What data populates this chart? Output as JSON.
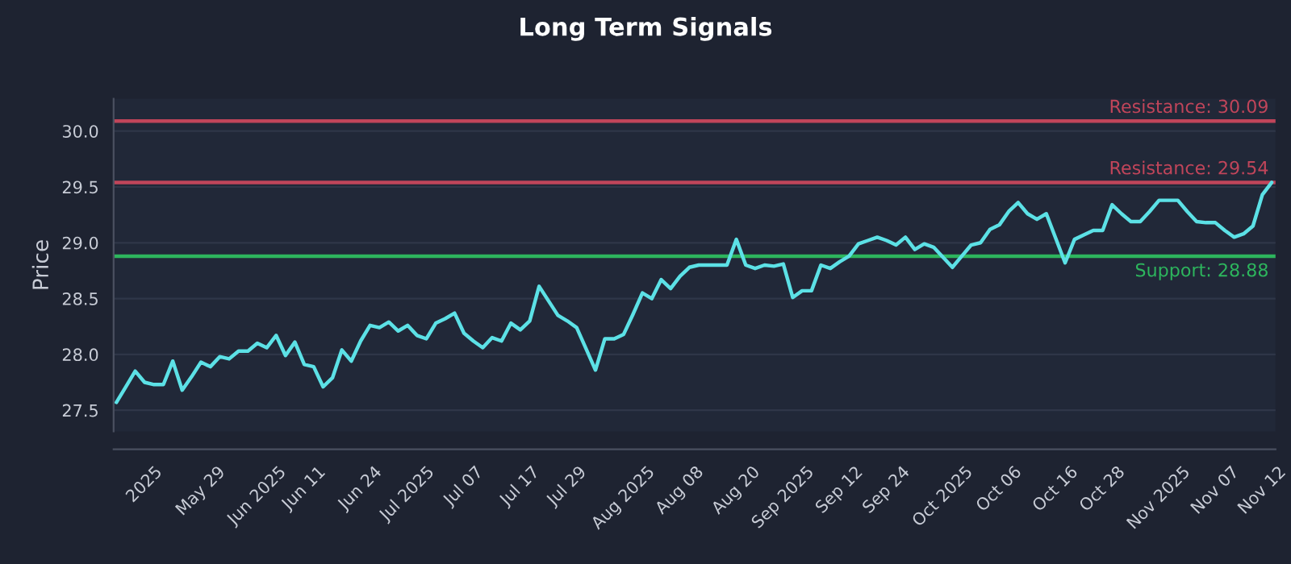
{
  "chart_data": {
    "type": "line",
    "title": "Long Term Signals",
    "ylabel": "Price",
    "categories": [
      null,
      null,
      null,
      "2025",
      null,
      null,
      null,
      null,
      null,
      "May 29",
      null,
      null,
      null,
      null,
      null,
      "Jun 2025",
      null,
      null,
      null,
      null,
      "Jun 11",
      null,
      null,
      null,
      null,
      null,
      "Jun 24",
      null,
      null,
      null,
      null,
      "Jul 2025",
      null,
      null,
      null,
      null,
      null,
      "Jul 07",
      null,
      null,
      null,
      null,
      null,
      "Jul 17",
      null,
      null,
      null,
      null,
      "Jul 29",
      null,
      null,
      null,
      null,
      null,
      "Aug 2025",
      null,
      null,
      null,
      null,
      null,
      "Aug 08",
      null,
      null,
      null,
      null,
      null,
      "Aug 20",
      null,
      null,
      null,
      null,
      "Sep 2025",
      null,
      null,
      null,
      null,
      null,
      "Sep 12",
      null,
      null,
      null,
      null,
      "Sep 24",
      null,
      null,
      null,
      null,
      null,
      "Oct 2025",
      null,
      null,
      null,
      null,
      null,
      "Oct 06",
      null,
      null,
      null,
      null,
      null,
      "Oct 16",
      null,
      null,
      null,
      null,
      "Oct 28",
      null,
      null,
      null,
      null,
      null,
      "Nov 2025",
      null,
      null,
      null,
      null,
      null,
      "Nov 07",
      null,
      null,
      null,
      null,
      "Nov 12",
      null
    ],
    "series": [
      {
        "color": "#5ce1e6",
        "values": [
          27.57,
          27.71,
          27.85,
          27.75,
          27.73,
          27.73,
          27.94,
          27.68,
          27.8,
          27.93,
          27.89,
          27.98,
          27.96,
          28.03,
          28.03,
          28.1,
          28.06,
          28.17,
          27.99,
          28.11,
          27.91,
          27.89,
          27.71,
          27.79,
          28.04,
          27.94,
          28.12,
          28.26,
          28.24,
          28.29,
          28.21,
          28.26,
          28.17,
          28.14,
          28.28,
          28.32,
          28.37,
          28.19,
          28.12,
          28.06,
          28.15,
          28.12,
          28.28,
          28.22,
          28.3,
          28.61,
          28.48,
          28.35,
          28.3,
          28.24,
          28.05,
          27.86,
          28.14,
          28.14,
          28.18,
          28.36,
          28.55,
          28.5,
          28.67,
          28.59,
          28.7,
          28.78,
          28.8,
          28.8,
          28.8,
          28.8,
          29.03,
          28.8,
          28.77,
          28.8,
          28.79,
          28.81,
          28.51,
          28.57,
          28.57,
          28.8,
          28.77,
          28.83,
          28.88,
          28.99,
          29.02,
          29.05,
          29.02,
          28.98,
          29.05,
          28.94,
          28.99,
          28.96,
          28.87,
          28.78,
          28.88,
          28.98,
          29.0,
          29.12,
          29.16,
          29.28,
          29.36,
          29.26,
          29.21,
          29.26,
          29.04,
          28.82,
          29.03,
          29.07,
          29.11,
          29.11,
          29.34,
          29.26,
          29.19,
          29.19,
          29.28,
          29.38,
          29.38,
          29.38,
          29.28,
          29.19,
          29.18,
          29.18,
          29.11,
          29.05,
          29.08,
          29.15,
          29.43,
          29.54
        ]
      }
    ],
    "ylim": [
      27.31,
      30.29
    ],
    "yticks": [
      {
        "value": 27.5,
        "label": "27.5"
      },
      {
        "value": 28.0,
        "label": "28.0"
      },
      {
        "value": 28.5,
        "label": "28.5"
      },
      {
        "value": 29.0,
        "label": "29.0"
      },
      {
        "value": 29.5,
        "label": "29.5"
      },
      {
        "value": 30.0,
        "label": "30.0"
      }
    ],
    "ref_lines": [
      {
        "axis": "y",
        "value": 30.09,
        "label": "Resistance: 30.09",
        "color": "#c0455a"
      },
      {
        "axis": "y",
        "value": 29.54,
        "label": "Resistance: 29.54",
        "color": "#c0455a"
      },
      {
        "axis": "y",
        "value": 28.88,
        "label": "Support: 28.88",
        "color": "#2db55d"
      }
    ],
    "grid": "y",
    "marker": "none",
    "line_style": "solid"
  }
}
